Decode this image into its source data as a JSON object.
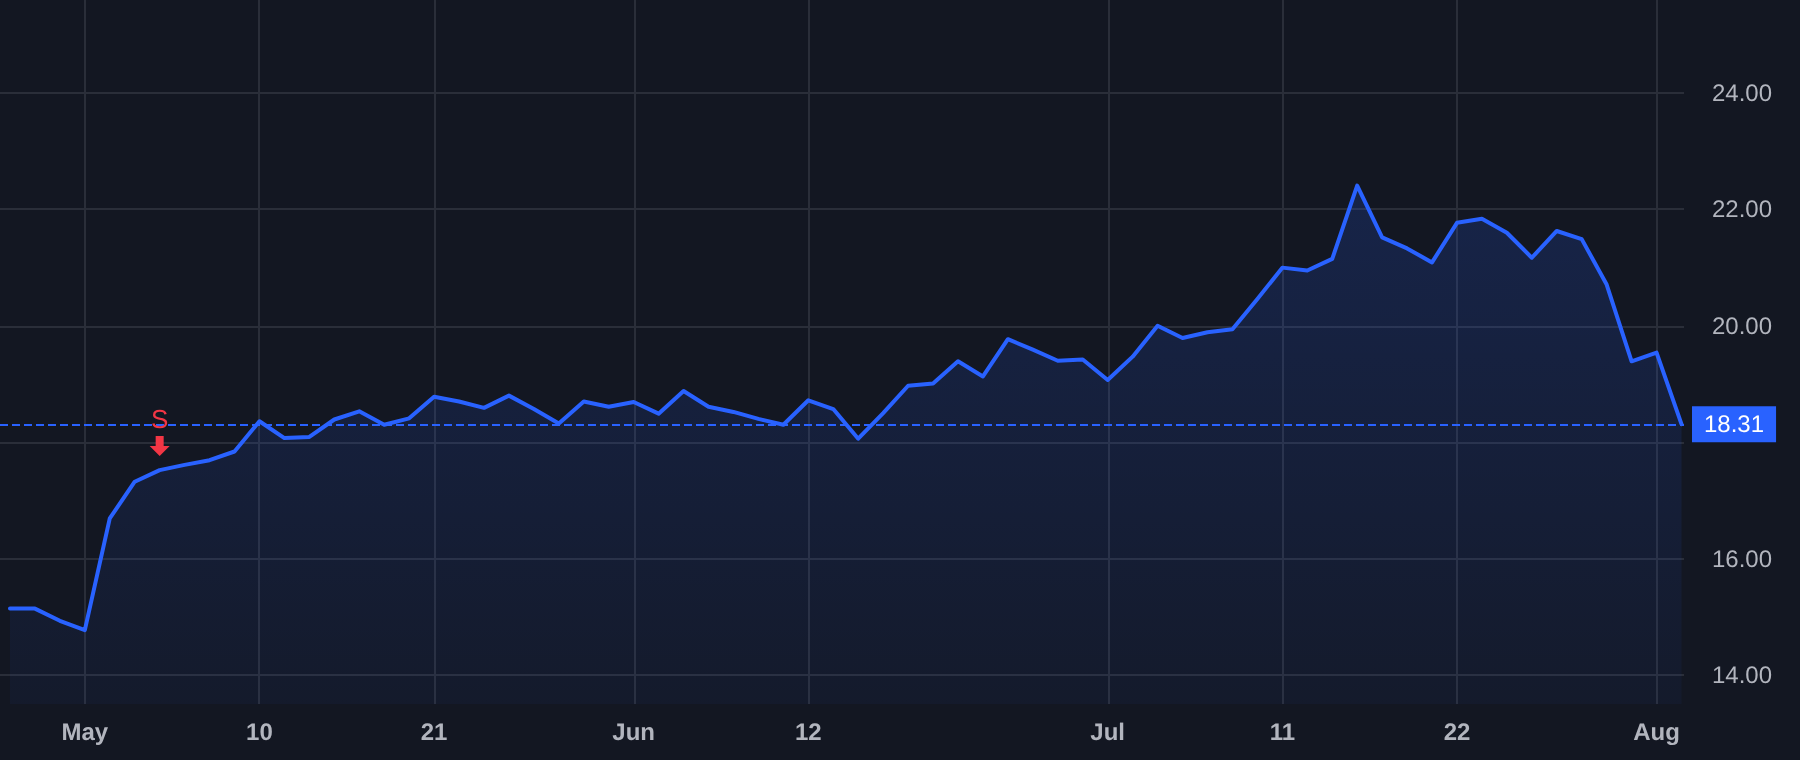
{
  "chart_data": {
    "type": "area",
    "categories": [
      null,
      null,
      null,
      "May",
      null,
      null,
      null,
      null,
      null,
      null,
      "10",
      null,
      null,
      null,
      null,
      null,
      null,
      "21",
      null,
      null,
      null,
      null,
      null,
      null,
      null,
      "Jun",
      null,
      null,
      null,
      null,
      null,
      null,
      "12",
      null,
      null,
      null,
      null,
      null,
      null,
      null,
      null,
      null,
      null,
      null,
      "Jul",
      null,
      null,
      null,
      null,
      null,
      null,
      "11",
      null,
      null,
      null,
      null,
      null,
      null,
      "22",
      null,
      null,
      null,
      null,
      null,
      null,
      null,
      "Aug",
      null
    ],
    "series": [
      {
        "color": "#2962ff",
        "values": [
          15.14,
          15.14,
          14.93,
          14.77,
          16.69,
          17.32,
          17.52,
          17.61,
          17.69,
          17.84,
          18.36,
          18.07,
          18.09,
          18.39,
          18.53,
          18.3,
          18.41,
          18.78,
          18.7,
          18.59,
          18.8,
          18.57,
          18.32,
          18.7,
          18.61,
          18.69,
          18.49,
          18.88,
          18.61,
          18.52,
          18.4,
          18.3,
          18.72,
          18.57,
          18.06,
          18.5,
          18.97,
          19.01,
          19.39,
          19.13,
          19.77,
          19.59,
          19.4,
          19.42,
          19.07,
          19.47,
          20.0,
          19.79,
          19.89,
          19.94,
          20.46,
          21.0,
          20.95,
          21.15,
          22.41,
          21.52,
          21.33,
          21.09,
          21.77,
          21.84,
          21.6,
          21.17,
          21.63,
          21.49,
          20.71,
          19.39,
          19.54,
          18.31
        ]
      }
    ],
    "ylim": [
      13.5,
      25.6
    ],
    "yticks": [
      {
        "value": 14,
        "label": "14.00"
      },
      {
        "value": 16,
        "label": "16.00"
      },
      {
        "value": 18,
        "label": null
      },
      {
        "value": 20,
        "label": "20.00"
      },
      {
        "value": 22,
        "label": "22.00"
      },
      {
        "value": 24,
        "label": "24.00"
      }
    ],
    "ref_lines": [
      {
        "axis": "y",
        "value": 18.31,
        "label": "18.31",
        "color": "#2962ff",
        "line_style": "dashed"
      }
    ],
    "annotations": [
      {
        "text": "S",
        "y": 17.52
      }
    ],
    "grid": true
  }
}
